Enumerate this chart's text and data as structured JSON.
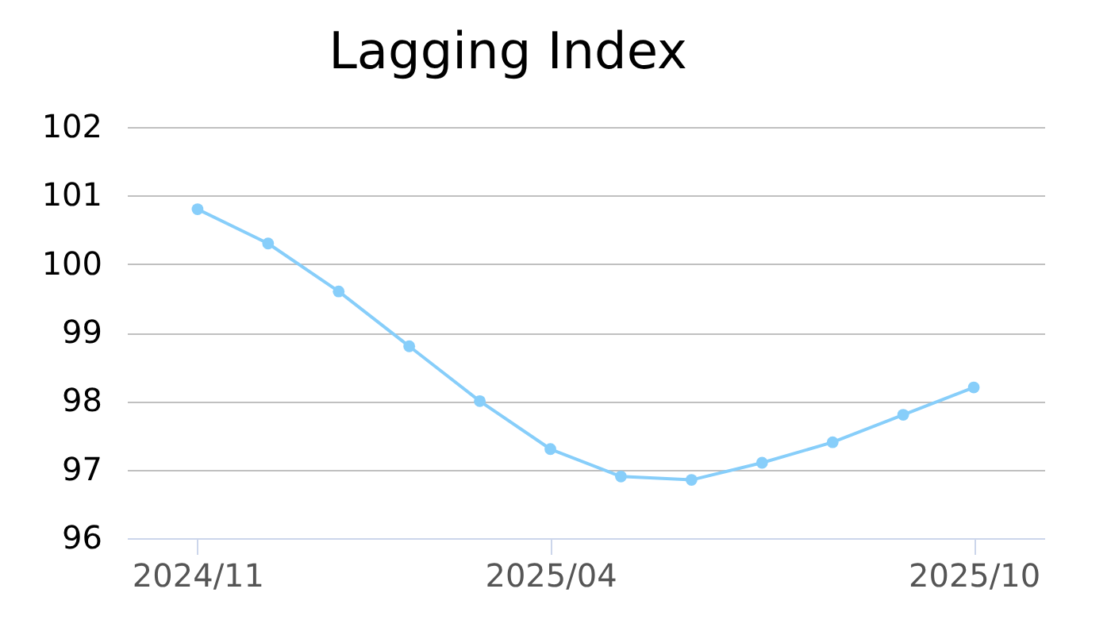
{
  "chart_data": {
    "type": "line",
    "title": "Lagging Index",
    "categories": [
      "2024/11",
      null,
      null,
      null,
      null,
      "2025/04",
      null,
      null,
      null,
      null,
      null,
      "2025/10"
    ],
    "series": [
      {
        "color": "#87cefa",
        "values": [
          100.8,
          100.3,
          99.6,
          98.8,
          98.0,
          97.3,
          96.9,
          96.85,
          97.1,
          97.4,
          97.8,
          98.2
        ]
      }
    ],
    "ylim": [
      96,
      102
    ],
    "yticks": [
      96,
      97,
      98,
      99,
      100,
      101,
      102
    ],
    "grid": "y",
    "marker": "circle",
    "line_style": "solid"
  }
}
